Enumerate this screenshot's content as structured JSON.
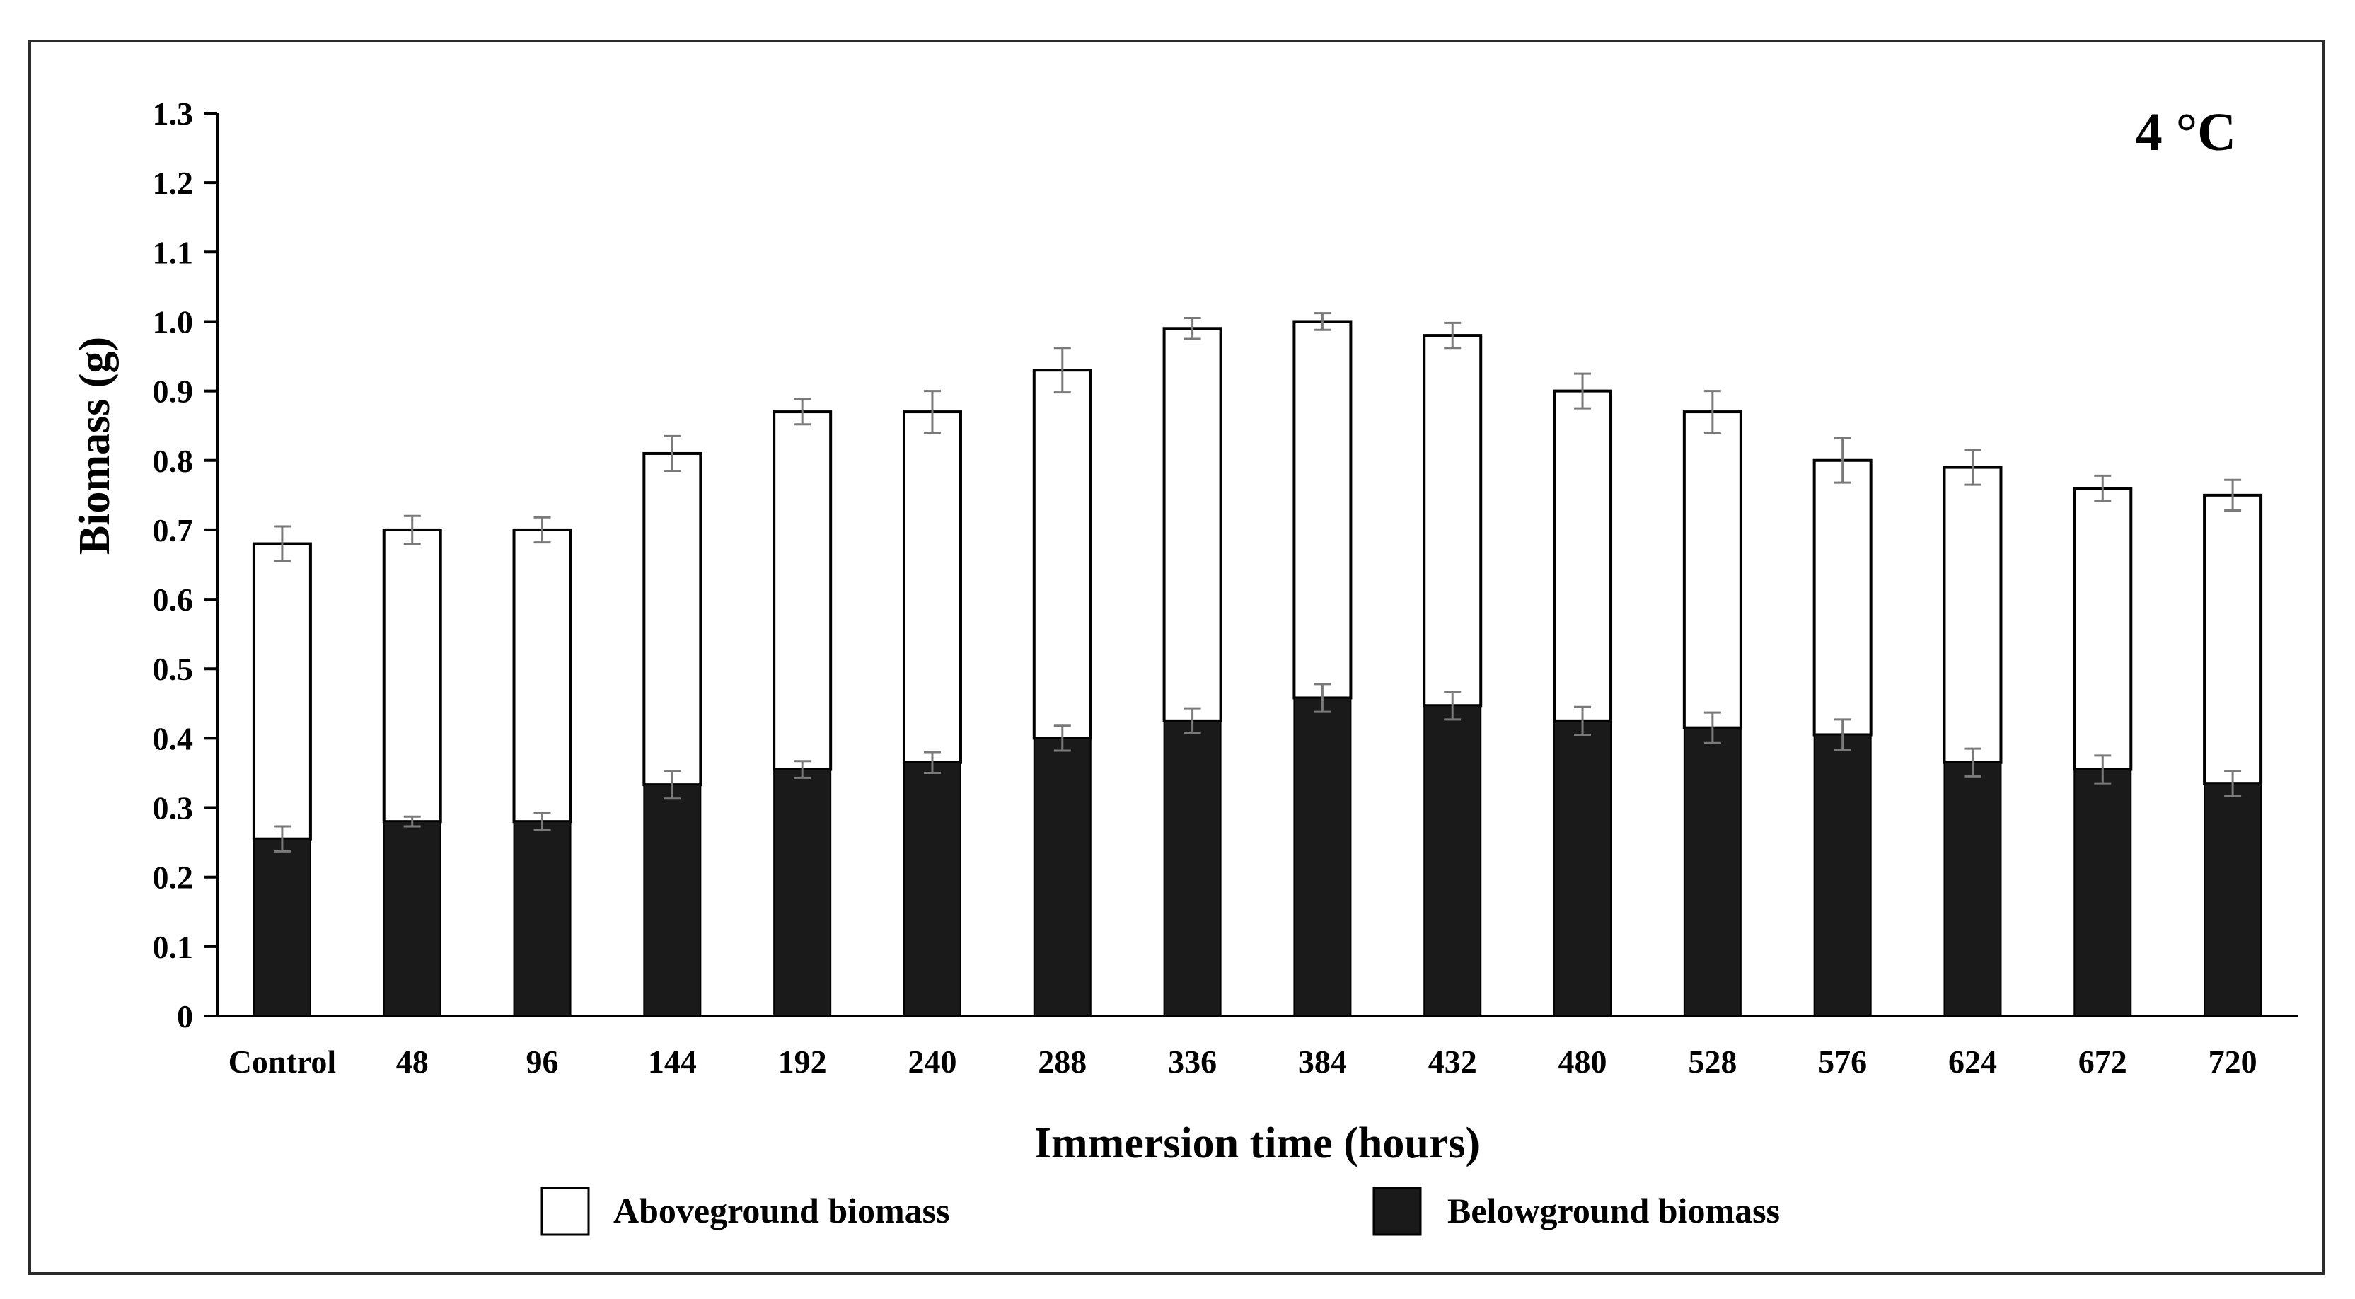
{
  "chart_data": {
    "type": "bar",
    "stacked": true,
    "panel_label": "4 °C",
    "xlabel": "Immersion time (hours)",
    "ylabel": "Biomass (g)",
    "ylim": [
      0,
      1.3
    ],
    "yticks": [
      "0",
      "0.1",
      "0.2",
      "0.3",
      "0.4",
      "0.5",
      "0.6",
      "0.7",
      "0.8",
      "0.9",
      "1.0",
      "1.1",
      "1.2",
      "1.3"
    ],
    "categories": [
      "Control",
      "48",
      "96",
      "144",
      "192",
      "240",
      "288",
      "336",
      "384",
      "432",
      "480",
      "528",
      "576",
      "624",
      "672",
      "720"
    ],
    "series": [
      {
        "name": "Belowground biomass",
        "fill": "#1a1a1a",
        "values": [
          0.255,
          0.28,
          0.28,
          0.333,
          0.355,
          0.365,
          0.4,
          0.425,
          0.458,
          0.447,
          0.425,
          0.415,
          0.405,
          0.365,
          0.355,
          0.335
        ],
        "errors": [
          0.018,
          0.007,
          0.012,
          0.02,
          0.012,
          0.015,
          0.018,
          0.018,
          0.02,
          0.02,
          0.02,
          0.022,
          0.022,
          0.02,
          0.02,
          0.018
        ]
      },
      {
        "name": "Aboveground biomass",
        "fill": "#ffffff",
        "totals": [
          0.68,
          0.7,
          0.7,
          0.81,
          0.87,
          0.87,
          0.93,
          0.99,
          1.0,
          0.98,
          0.9,
          0.87,
          0.8,
          0.79,
          0.76,
          0.75
        ],
        "errors": [
          0.025,
          0.02,
          0.018,
          0.025,
          0.018,
          0.03,
          0.032,
          0.015,
          0.012,
          0.018,
          0.025,
          0.03,
          0.032,
          0.025,
          0.018,
          0.022
        ]
      }
    ],
    "legend": [
      {
        "label": "Aboveground biomass",
        "fill": "#ffffff"
      },
      {
        "label": "Belowground biomass",
        "fill": "#1a1a1a"
      }
    ],
    "legend_position": "bottom",
    "grid": false
  }
}
